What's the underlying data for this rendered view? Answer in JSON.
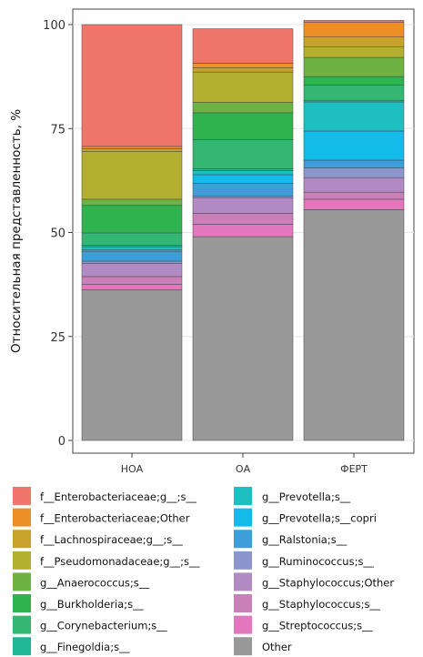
{
  "chart_data": {
    "type": "bar",
    "stacked": true,
    "ylabel": "Относительная представленность, %",
    "xlabel": "",
    "ylim": [
      0,
      100
    ],
    "yticks": [
      0,
      25,
      50,
      75,
      100
    ],
    "grid": true,
    "legend_position": "bottom",
    "categories": [
      "НОА",
      "ОА",
      "ФЕРТ"
    ],
    "series": [
      {
        "name": "Other",
        "color": "#999999",
        "values": [
          36.2,
          49.0,
          55.5
        ]
      },
      {
        "name": "g__Streptococcus;s__",
        "color": "#e377bd",
        "values": [
          1.3,
          3.0,
          2.5
        ]
      },
      {
        "name": "g__Staphylococcus;s__",
        "color": "#c980b9",
        "values": [
          1.9,
          2.6,
          1.7
        ]
      },
      {
        "name": "g__Staphylococcus;Other",
        "color": "#b18ac3",
        "values": [
          3.2,
          3.8,
          3.5
        ]
      },
      {
        "name": "g__Ruminococcus;s__",
        "color": "#8c96cc",
        "values": [
          0.5,
          0.4,
          2.3
        ]
      },
      {
        "name": "g__Ralstonia;s__",
        "color": "#3d9ed9",
        "values": [
          2.4,
          3.0,
          1.9
        ]
      },
      {
        "name": "g__Prevotella;s__copri",
        "color": "#12bbe8",
        "values": [
          0.3,
          2.1,
          7.0
        ]
      },
      {
        "name": "g__Prevotella;s__",
        "color": "#1dbfc1",
        "values": [
          0.8,
          1.0,
          7.0
        ]
      },
      {
        "name": "g__Finegoldia;s__",
        "color": "#20b896",
        "values": [
          0.3,
          0.4,
          0.4
        ]
      },
      {
        "name": "g__Corynebacterium;s__",
        "color": "#33b773",
        "values": [
          3.0,
          7.0,
          3.6
        ]
      },
      {
        "name": "g__Burkholderia;s__",
        "color": "#2eb34f",
        "values": [
          6.6,
          6.5,
          2.1
        ]
      },
      {
        "name": "g__Anaerococcus;s__",
        "color": "#6eb243",
        "values": [
          1.5,
          2.5,
          4.6
        ]
      },
      {
        "name": "f__Pseudomonadaceae;g__;s__",
        "color": "#b3af30",
        "values": [
          11.5,
          7.3,
          2.6
        ]
      },
      {
        "name": "f__Lachnospiraceae;g__;s__",
        "color": "#c9a22c",
        "values": [
          0.6,
          1.0,
          2.3
        ]
      },
      {
        "name": "f__Enterobacteriaceae;Other",
        "color": "#ec8f27",
        "values": [
          0.6,
          1.1,
          3.5
        ]
      },
      {
        "name": "f__Enterobacteriaceae;g__;s__",
        "color": "#f0766b",
        "values": [
          29.3,
          8.3,
          0.5
        ]
      }
    ],
    "legend": [
      {
        "label": "f__Enterobacteriaceae;g__;s__",
        "color": "#f0766b"
      },
      {
        "label": "f__Enterobacteriaceae;Other",
        "color": "#ec8f27"
      },
      {
        "label": "f__Lachnospiraceae;g__;s__",
        "color": "#c9a22c"
      },
      {
        "label": "f__Pseudomonadaceae;g__;s__",
        "color": "#b3af30"
      },
      {
        "label": "g__Anaerococcus;s__",
        "color": "#6eb243"
      },
      {
        "label": "g__Burkholderia;s__",
        "color": "#2eb34f"
      },
      {
        "label": "g__Corynebacterium;s__",
        "color": "#33b773"
      },
      {
        "label": "g__Finegoldia;s__",
        "color": "#20b896"
      },
      {
        "label": "g__Prevotella;s__",
        "color": "#1dbfc1"
      },
      {
        "label": "g__Prevotella;s__copri",
        "color": "#12bbe8"
      },
      {
        "label": "g__Ralstonia;s__",
        "color": "#3d9ed9"
      },
      {
        "label": "g__Ruminococcus;s__",
        "color": "#8c96cc"
      },
      {
        "label": "g__Staphylococcus;Other",
        "color": "#b18ac3"
      },
      {
        "label": "g__Staphylococcus;s__",
        "color": "#c980b9"
      },
      {
        "label": "g__Streptococcus;s__",
        "color": "#e377bd"
      },
      {
        "label": "Other",
        "color": "#999999"
      }
    ]
  }
}
